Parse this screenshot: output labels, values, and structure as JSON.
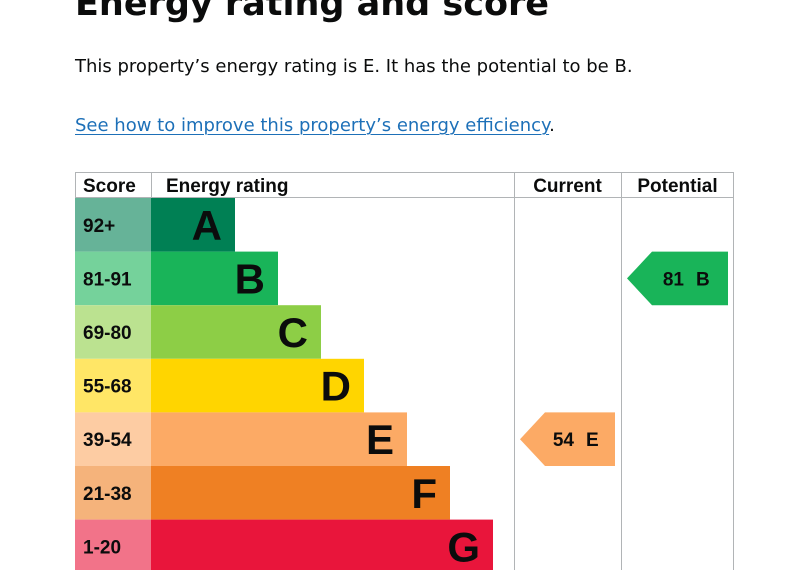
{
  "page": {
    "heading": "Energy rating and score",
    "summary": "This property’s energy rating is E. It has the potential to be B.",
    "link_text": "See how to improve this property’s energy efficiency",
    "link_suffix": "."
  },
  "chart_data": {
    "type": "bar",
    "columns": {
      "score": "Score",
      "rating": "Energy rating",
      "current": "Current",
      "potential": "Potential"
    },
    "bands": [
      {
        "score": "92+",
        "letter": "A",
        "color": "#008054",
        "score_color": "#66b398"
      },
      {
        "score": "81-91",
        "letter": "B",
        "color": "#19b459",
        "score_color": "#75d29b"
      },
      {
        "score": "69-80",
        "letter": "C",
        "color": "#8dce46",
        "score_color": "#bbe290"
      },
      {
        "score": "55-68",
        "letter": "D",
        "color": "#ffd500",
        "score_color": "#ffe666"
      },
      {
        "score": "39-54",
        "letter": "E",
        "color": "#fcaa65",
        "score_color": "#fdcca3"
      },
      {
        "score": "21-38",
        "letter": "F",
        "color": "#ef8023",
        "score_color": "#f5b37b"
      },
      {
        "score": "1-20",
        "letter": "G",
        "color": "#e9153b",
        "score_color": "#f27389"
      }
    ],
    "current": {
      "score": 54,
      "letter": "E",
      "color": "#fcaa65"
    },
    "potential": {
      "score": 81,
      "letter": "B",
      "color": "#19b459"
    }
  }
}
